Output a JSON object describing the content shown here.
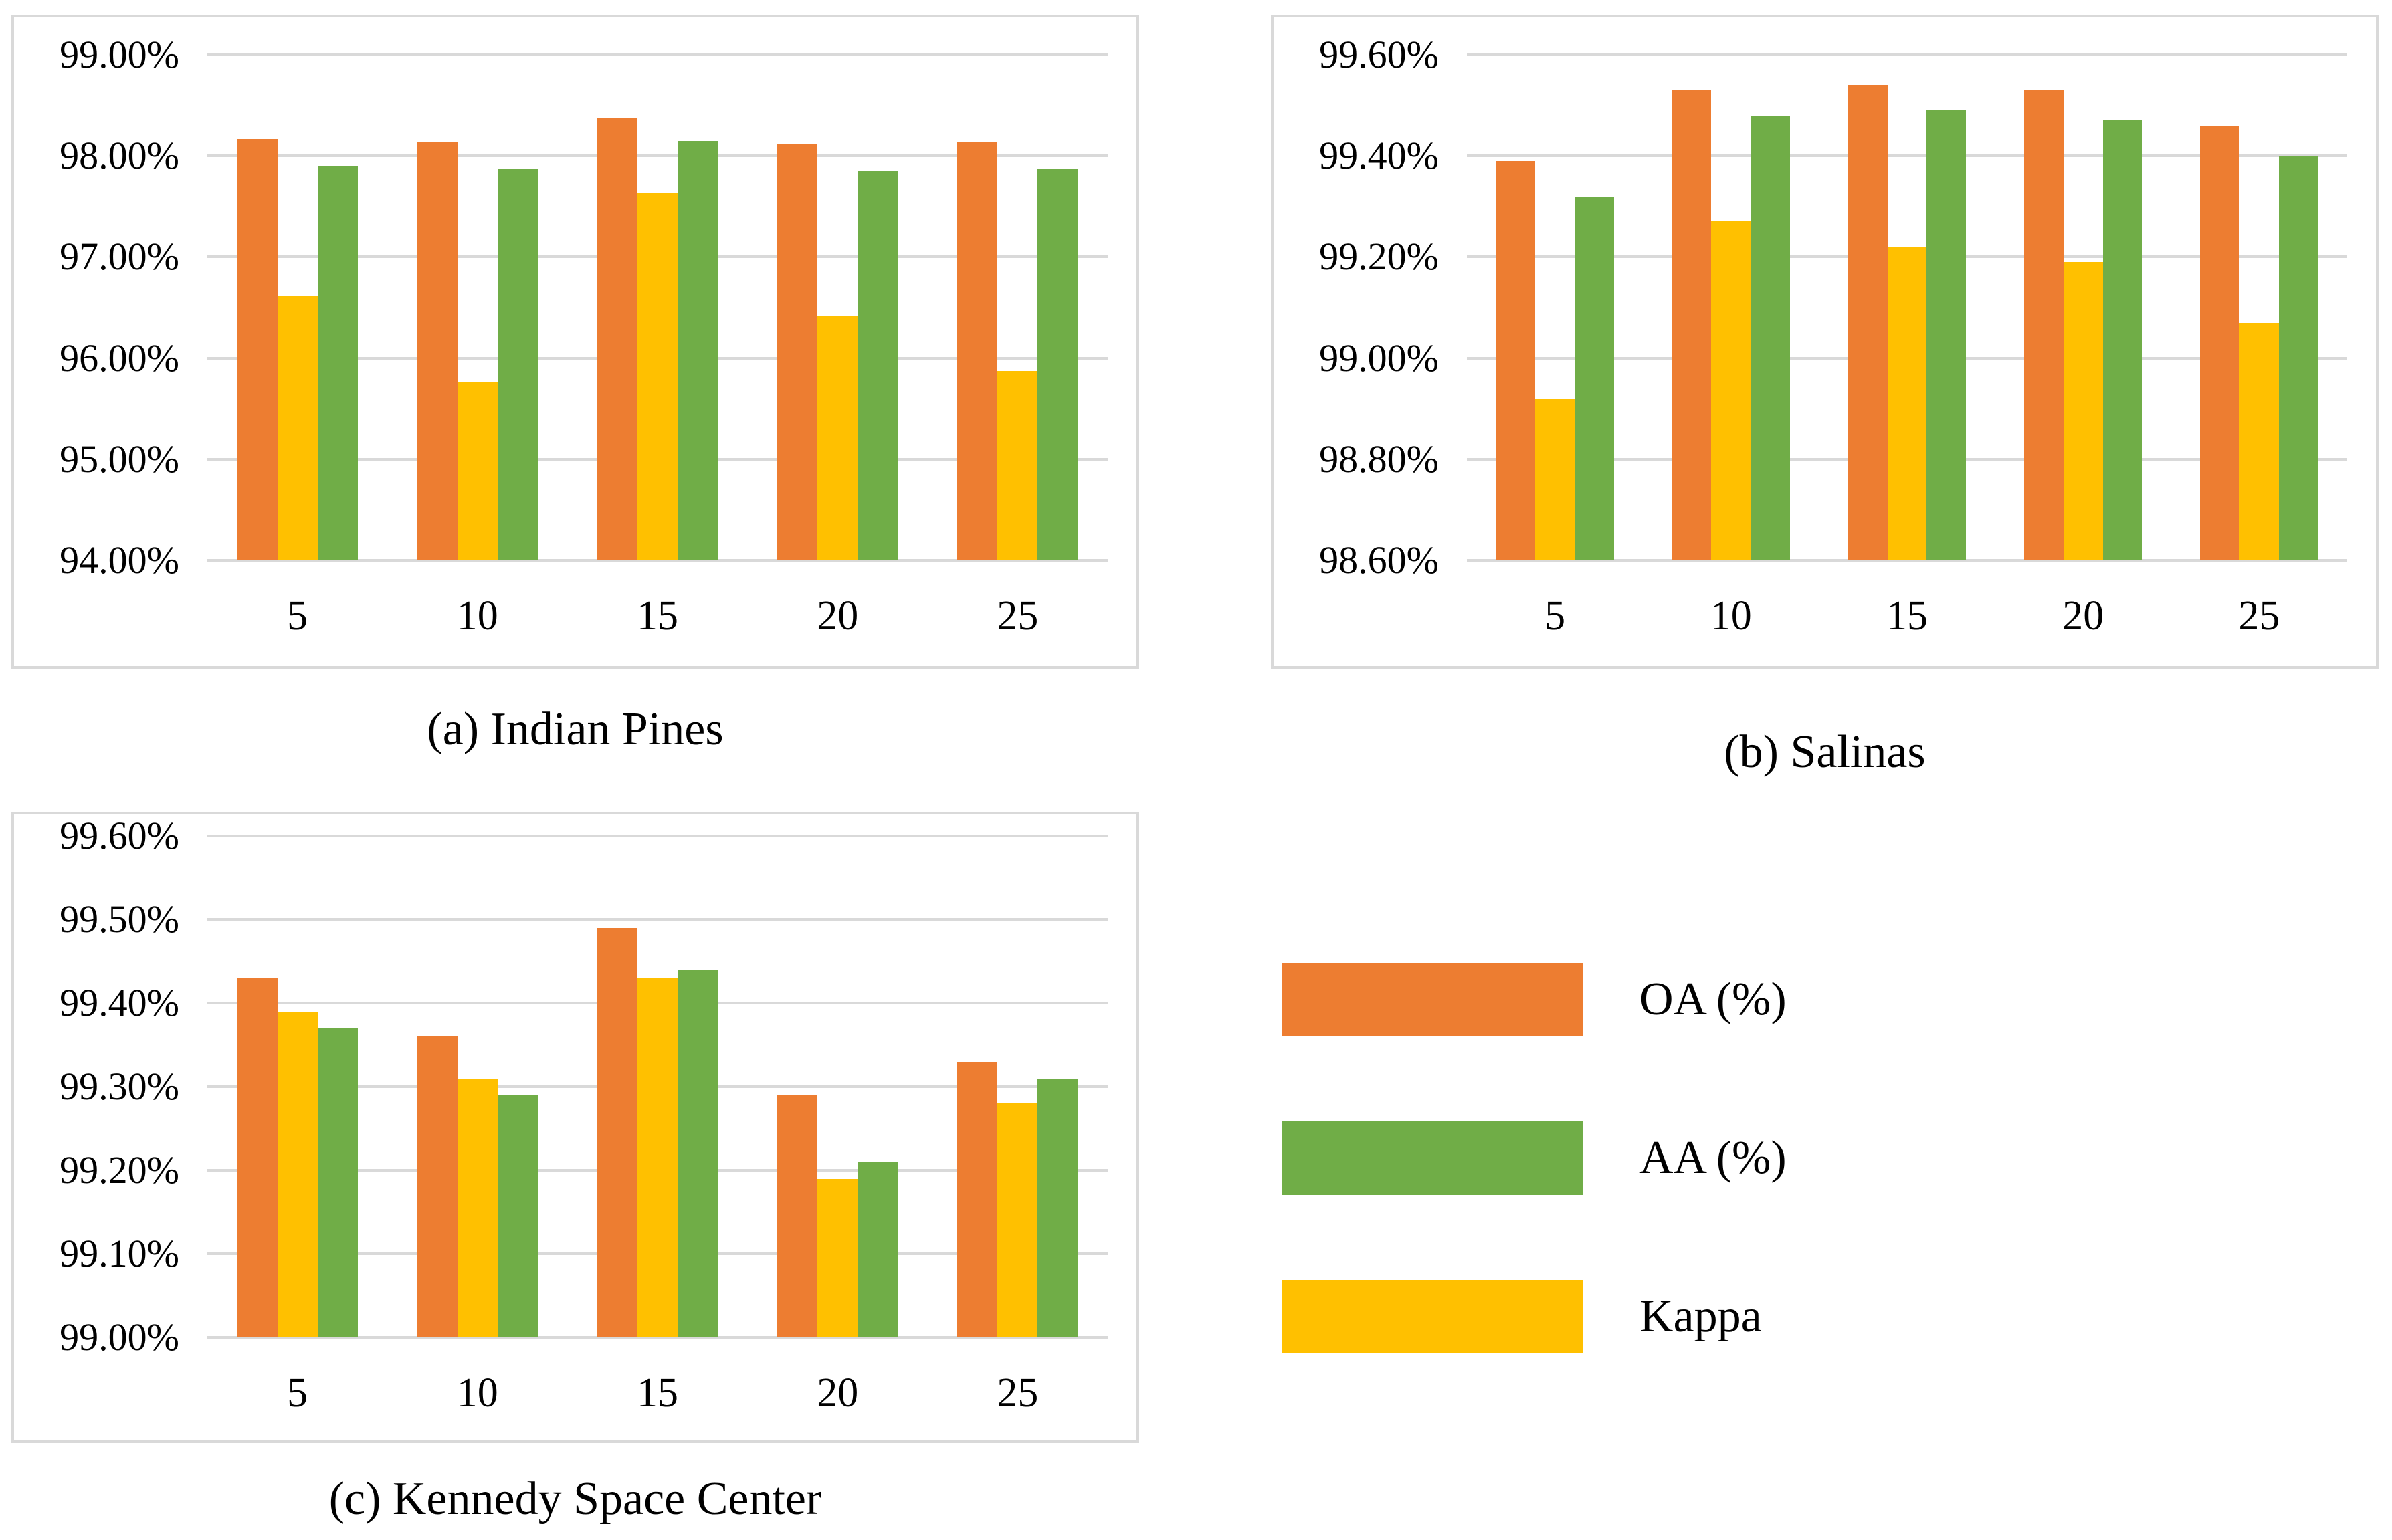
{
  "figure": {
    "background": "#ffffff",
    "text_color": "#000000",
    "panel_border_color": "#d9d9d9",
    "gridline_color": "#d9d9d9"
  },
  "legend": {
    "items": [
      {
        "label": "OA (%)",
        "color": "#ED7D31"
      },
      {
        "label": "AA (%)",
        "color": "#70AD47"
      },
      {
        "label": "Kappa",
        "color": "#FFC000"
      }
    ]
  },
  "chart_data": [
    {
      "id": "indian-pines",
      "type": "bar",
      "caption": "(a) Indian Pines",
      "xlabel": "",
      "ylabel": "",
      "grid": true,
      "legend_position": "shared-bottom-right",
      "categories": [
        "5",
        "10",
        "15",
        "20",
        "25"
      ],
      "ylim": [
        94.0,
        99.0
      ],
      "y_ticks": [
        {
          "value": 99.0,
          "label": "99.00%"
        },
        {
          "value": 98.0,
          "label": "98.00%"
        },
        {
          "value": 97.0,
          "label": "97.00%"
        },
        {
          "value": 96.0,
          "label": "96.00%"
        },
        {
          "value": 95.0,
          "label": "95.00%"
        },
        {
          "value": 94.0,
          "label": "94.00%"
        }
      ],
      "series": [
        {
          "name": "OA (%)",
          "color": "#ED7D31",
          "values": [
            98.17,
            98.14,
            98.37,
            98.12,
            98.14
          ]
        },
        {
          "name": "Kappa",
          "color": "#FFC000",
          "values": [
            96.62,
            95.76,
            97.63,
            96.42,
            95.87
          ]
        },
        {
          "name": "AA (%)",
          "color": "#70AD47",
          "values": [
            97.9,
            97.87,
            98.15,
            97.85,
            97.87
          ]
        }
      ]
    },
    {
      "id": "salinas",
      "type": "bar",
      "caption": "(b) Salinas",
      "xlabel": "",
      "ylabel": "",
      "grid": true,
      "legend_position": "shared-bottom-right",
      "categories": [
        "5",
        "10",
        "15",
        "20",
        "25"
      ],
      "ylim": [
        98.6,
        99.6
      ],
      "y_ticks": [
        {
          "value": 99.6,
          "label": "99.60%"
        },
        {
          "value": 99.4,
          "label": "99.40%"
        },
        {
          "value": 99.2,
          "label": "99.20%"
        },
        {
          "value": 99.0,
          "label": "99.00%"
        },
        {
          "value": 98.8,
          "label": "98.80%"
        },
        {
          "value": 98.6,
          "label": "98.60%"
        }
      ],
      "series": [
        {
          "name": "OA (%)",
          "color": "#ED7D31",
          "values": [
            99.39,
            99.53,
            99.54,
            99.53,
            99.46
          ]
        },
        {
          "name": "Kappa",
          "color": "#FFC000",
          "values": [
            98.92,
            99.27,
            99.22,
            99.19,
            99.07
          ]
        },
        {
          "name": "AA (%)",
          "color": "#70AD47",
          "values": [
            99.32,
            99.48,
            99.49,
            99.47,
            99.4
          ]
        }
      ]
    },
    {
      "id": "kennedy-space-center",
      "type": "bar",
      "caption": "(c) Kennedy Space Center",
      "xlabel": "",
      "ylabel": "",
      "grid": true,
      "legend_position": "shared-bottom-right",
      "categories": [
        "5",
        "10",
        "15",
        "20",
        "25"
      ],
      "ylim": [
        99.0,
        99.6
      ],
      "y_ticks": [
        {
          "value": 99.6,
          "label": "99.60%"
        },
        {
          "value": 99.5,
          "label": "99.50%"
        },
        {
          "value": 99.4,
          "label": "99.40%"
        },
        {
          "value": 99.3,
          "label": "99.30%"
        },
        {
          "value": 99.2,
          "label": "99.20%"
        },
        {
          "value": 99.1,
          "label": "99.10%"
        },
        {
          "value": 99.0,
          "label": "99.00%"
        }
      ],
      "series": [
        {
          "name": "OA (%)",
          "color": "#ED7D31",
          "values": [
            99.43,
            99.36,
            99.49,
            99.29,
            99.33
          ]
        },
        {
          "name": "Kappa",
          "color": "#FFC000",
          "values": [
            99.39,
            99.31,
            99.43,
            99.19,
            99.28
          ]
        },
        {
          "name": "AA (%)",
          "color": "#70AD47",
          "values": [
            99.37,
            99.29,
            99.44,
            99.21,
            99.31
          ]
        }
      ]
    }
  ]
}
